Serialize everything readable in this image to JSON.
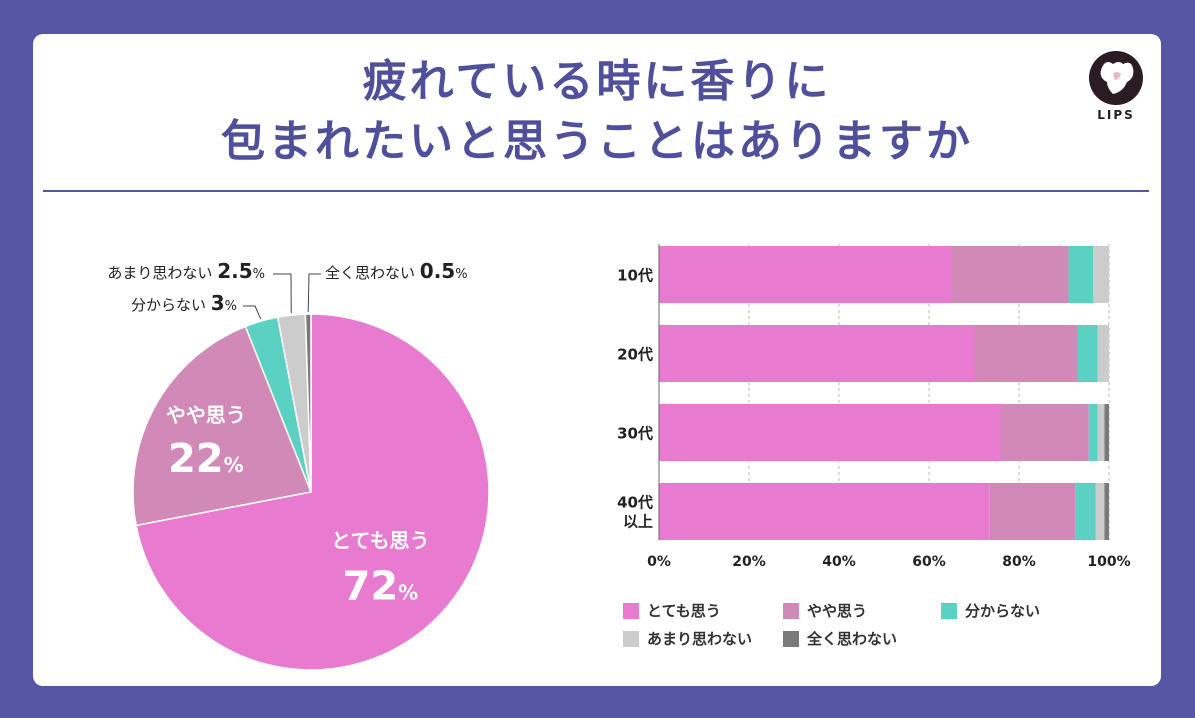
{
  "title": {
    "line1": "疲れている時に香りに",
    "line2": "包まれたいと思うことはありますか"
  },
  "logo": {
    "text": "LIPS"
  },
  "colors": {
    "background": "#5656a5",
    "title": "#4f4f9b",
    "series": [
      "#e87bcf",
      "#d189b8",
      "#5ad1c2",
      "#cccccc",
      "#7a7a7a"
    ]
  },
  "chart_data": [
    {
      "type": "pie",
      "slices": [
        {
          "name": "とても思う",
          "value": 72,
          "value_label": "72",
          "unit": "%"
        },
        {
          "name": "やや思う",
          "value": 22,
          "value_label": "22",
          "unit": "%"
        },
        {
          "name": "分からない",
          "value": 3,
          "value_label": "3",
          "unit": "%"
        },
        {
          "name": "あまり思わない",
          "value": 2.5,
          "value_label": "2.5",
          "unit": "%"
        },
        {
          "name": "全く思わない",
          "value": 0.5,
          "value_label": "0.5",
          "unit": "%"
        }
      ]
    },
    {
      "type": "bar",
      "orientation": "horizontal",
      "stacked": true,
      "categories": [
        "10代",
        "20代",
        "30代",
        "40代\n以上"
      ],
      "series": [
        {
          "name": "とても思う",
          "values": [
            65,
            70,
            76,
            73.5
          ]
        },
        {
          "name": "やや思う",
          "values": [
            26,
            23,
            19.5,
            19
          ]
        },
        {
          "name": "分からない",
          "values": [
            5.5,
            4.5,
            2,
            4.5
          ]
        },
        {
          "name": "あまり思わない",
          "values": [
            3.5,
            2.5,
            1.5,
            2
          ]
        },
        {
          "name": "全く思わない",
          "values": [
            0,
            0,
            1,
            1
          ]
        }
      ],
      "xlim": [
        0,
        100
      ],
      "xticks": [
        "0%",
        "20%",
        "40%",
        "60%",
        "80%",
        "100%"
      ],
      "grid": true,
      "legend_position": "bottom"
    }
  ]
}
